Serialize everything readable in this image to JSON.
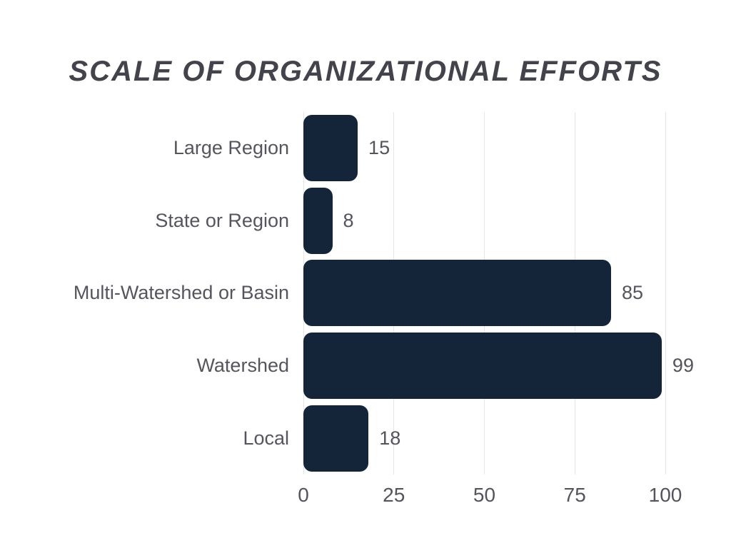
{
  "chart_data": {
    "type": "bar",
    "orientation": "horizontal",
    "title": "SCALE OF ORGANIZATIONAL EFFORTS",
    "categories": [
      "Large Region",
      "State or Region",
      "Multi-Watershed or Basin",
      "Watershed",
      "Local"
    ],
    "values": [
      15,
      8,
      85,
      99,
      18
    ],
    "value_labels": [
      "15",
      "8",
      "85",
      "99",
      "18"
    ],
    "xlabel": "",
    "ylabel": "",
    "xlim": [
      0,
      100
    ],
    "xticks": [
      0,
      25,
      50,
      75,
      100
    ],
    "xtick_labels": [
      "0",
      "25",
      "50",
      "75",
      "100"
    ],
    "grid": "vertical",
    "legend": "none",
    "colors": {
      "bar": "#14253a",
      "title_text": "#43434b",
      "category_text": "#55555d",
      "value_text": "#54545c",
      "tick_text": "#54545c",
      "gridline": "#e6e6e6",
      "background": "#ffffff"
    }
  }
}
